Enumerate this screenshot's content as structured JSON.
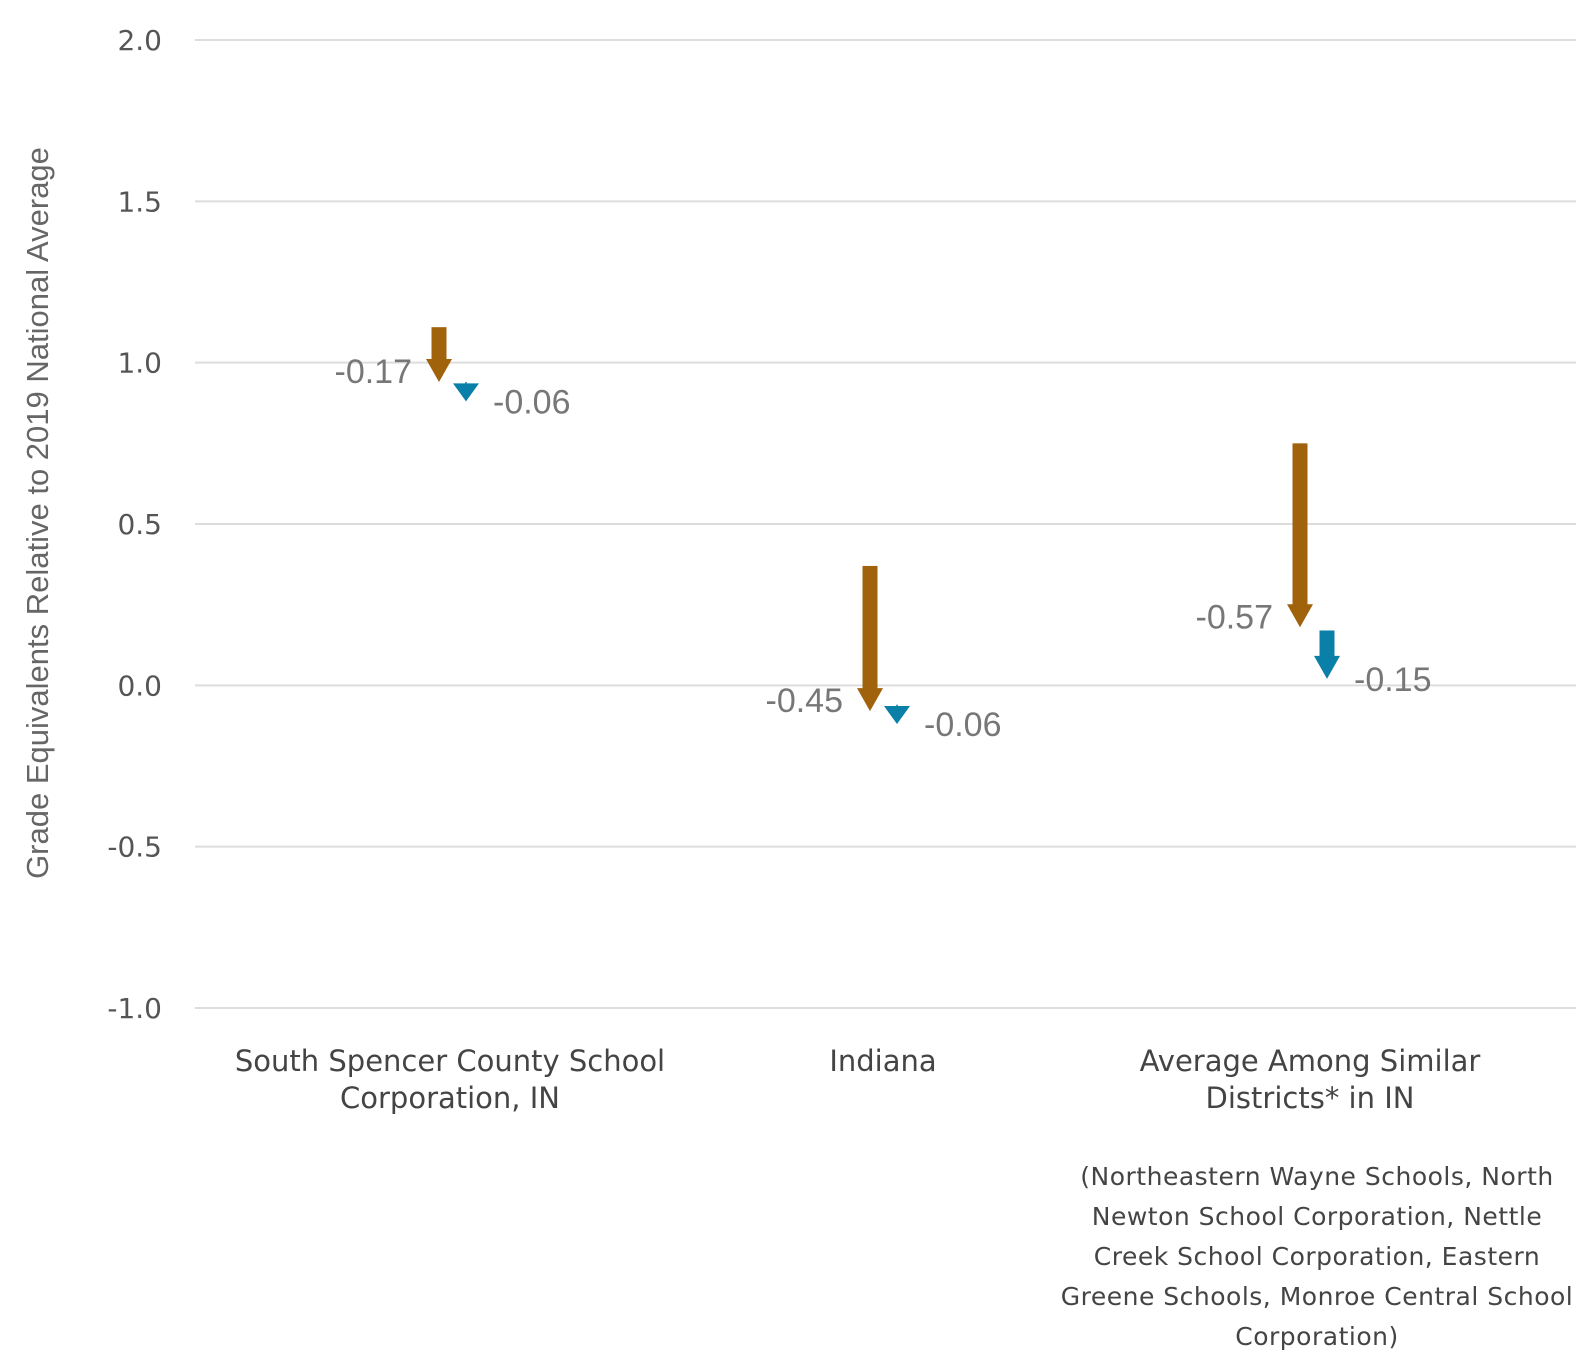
{
  "chart_data": {
    "type": "arrow",
    "ylabel": "Grade Equivalents Relative to 2019 National Average",
    "ylim": [
      -1.0,
      2.0
    ],
    "yticks": [
      2.0,
      1.5,
      1.0,
      0.5,
      0.0,
      -0.5,
      -1.0
    ],
    "ytick_labels": [
      "2.0",
      "1.5",
      "1.0",
      "0.5",
      "0.0",
      "-0.5",
      "-1.0"
    ],
    "grid": true,
    "categories": [
      "South Spencer County School Corporation, IN",
      "Indiana",
      "Average Among Similar Districts* in IN"
    ],
    "series": [
      {
        "color": "#a0620a",
        "arrows": [
          {
            "start": 1.11,
            "end": 0.94,
            "label": "-0.17"
          },
          {
            "start": 0.37,
            "end": -0.08,
            "label": "-0.45"
          },
          {
            "start": 0.75,
            "end": 0.18,
            "label": "-0.57"
          }
        ]
      },
      {
        "color": "#0a7fa8",
        "arrows": [
          {
            "start": 0.94,
            "end": 0.88,
            "label": "-0.06"
          },
          {
            "start": -0.06,
            "end": -0.12,
            "label": "-0.06"
          },
          {
            "start": 0.17,
            "end": 0.02,
            "label": "-0.15"
          }
        ]
      }
    ],
    "note": "(Northeastern Wayne Schools, North Newton School Corporation, Nettle Creek School Corporation, Eastern Greene Schools, Monroe Central School Corporation)"
  },
  "categories_display": [
    [
      "South Spencer County School",
      "Corporation, IN"
    ],
    [
      "Indiana"
    ],
    [
      "Average Among Similar",
      "Districts* in IN"
    ]
  ],
  "note_lines": [
    "(Northeastern Wayne Schools, North",
    "Newton School Corporation, Nettle",
    "Creek School Corporation, Eastern",
    "Greene Schools, Monroe Central School",
    "Corporation)"
  ]
}
